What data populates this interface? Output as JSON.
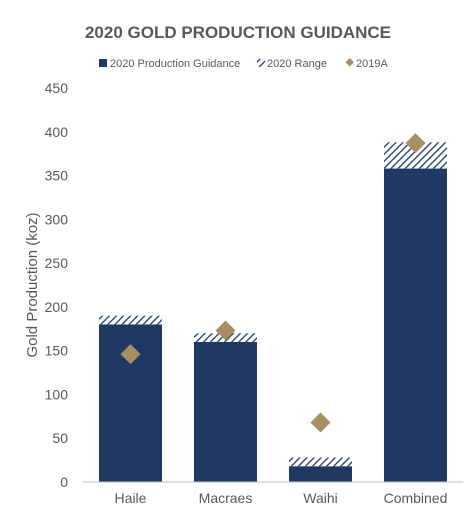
{
  "chart_data": {
    "type": "bar",
    "title": "2020 GOLD PRODUCTION GUIDANCE",
    "ylabel": "Gold Production (koz)",
    "xlabel": "",
    "categories": [
      "Haile",
      "Macraes",
      "Waihi",
      "Combined"
    ],
    "series": [
      {
        "name": "2020 Production Guidance",
        "kind": "stacked-bar",
        "values": [
          180,
          160,
          18,
          358
        ],
        "color": "#1f3864"
      },
      {
        "name": "2020 Range",
        "kind": "stacked-bar-hatched",
        "values": [
          10,
          10,
          10,
          30
        ],
        "color": "#1f3864"
      },
      {
        "name": "2019A",
        "kind": "marker-diamond",
        "values": [
          146,
          173,
          68,
          387
        ],
        "color": "#a68f63"
      }
    ],
    "ylim": [
      0,
      450
    ],
    "yticks": [
      0,
      50,
      100,
      150,
      200,
      250,
      300,
      350,
      400,
      450
    ],
    "grid": false,
    "legend_position": "top"
  }
}
